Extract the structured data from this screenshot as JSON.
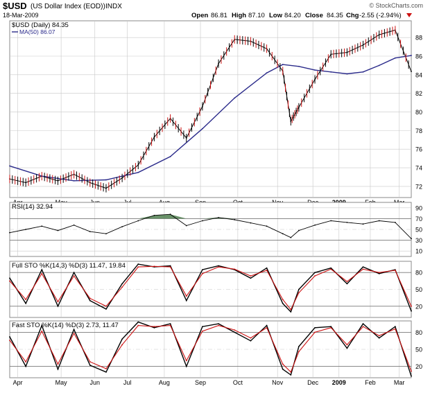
{
  "header": {
    "symbol": "$USD",
    "name": "(US Dollar Index (EOD))",
    "exchange": "INDX",
    "date": "18-Mar-2009",
    "brand": "© StockCharts.com",
    "open_label": "Open",
    "open": "86.81",
    "high_label": "High",
    "high": "87.10",
    "low_label": "Low",
    "low": "84.20",
    "close_label": "Close",
    "close": "84.35",
    "chg_label": "Chg",
    "chg": "-2.55 (-2.94%)"
  },
  "colors": {
    "price": "#000000",
    "ma": "#2a2a8a",
    "signal": "#cc1111",
    "rsi_fill": "#4f7f4f",
    "grid": "#c8c8c8",
    "down": "#cc1111"
  },
  "chart_data": [
    {
      "type": "line",
      "title": "$USD (Daily) 84.35",
      "legend": [
        "$USD (Daily) 84.35",
        "MA(50) 86.07"
      ],
      "x_ticks": [
        "Apr",
        "May",
        "Jun",
        "Jul",
        "Aug",
        "Sep",
        "Oct",
        "Nov",
        "Dec",
        "2009",
        "Feb",
        "Mar"
      ],
      "ylim": [
        70.8,
        89.8
      ],
      "y_ticks": [
        72,
        74,
        76,
        78,
        80,
        82,
        84,
        86,
        88
      ],
      "series": [
        {
          "name": "$USD (Daily)",
          "x": [
            0,
            10,
            20,
            30,
            40,
            50,
            60,
            70,
            80,
            90,
            100,
            110,
            120,
            130,
            140,
            150,
            160,
            170,
            175,
            180,
            190,
            200,
            210,
            220,
            230,
            240,
            250
          ],
          "values": [
            72.8,
            72.4,
            73.1,
            72.6,
            73.3,
            72.4,
            71.8,
            72.9,
            74.3,
            77.3,
            79.3,
            77.2,
            80.6,
            85.2,
            87.8,
            87.6,
            86.8,
            84.4,
            79.0,
            80.5,
            83.5,
            86.2,
            86.4,
            87.2,
            88.3,
            88.8,
            84.35
          ]
        },
        {
          "name": "MA(50) 86.07",
          "x": [
            0,
            20,
            40,
            60,
            80,
            100,
            120,
            140,
            160,
            170,
            180,
            190,
            200,
            210,
            220,
            230,
            240,
            250
          ],
          "values": [
            74.2,
            73.1,
            72.6,
            72.7,
            73.5,
            75.2,
            78.2,
            81.5,
            84.2,
            85.1,
            84.9,
            84.5,
            84.3,
            84.1,
            84.3,
            85.0,
            85.8,
            86.07
          ]
        }
      ]
    },
    {
      "type": "line",
      "title": "RSI(14) 32.94",
      "ylim": [
        0,
        100
      ],
      "y_ticks": [
        10,
        30,
        50,
        70,
        90
      ],
      "series": [
        {
          "name": "RSI(14)",
          "x": [
            0,
            10,
            20,
            30,
            40,
            50,
            60,
            70,
            80,
            90,
            100,
            110,
            120,
            130,
            140,
            150,
            160,
            170,
            175,
            180,
            190,
            200,
            210,
            220,
            230,
            240,
            250
          ],
          "values": [
            44,
            50,
            56,
            48,
            58,
            46,
            42,
            55,
            66,
            76,
            78,
            57,
            66,
            72,
            68,
            62,
            56,
            42,
            35,
            48,
            58,
            66,
            63,
            60,
            66,
            63,
            32.94
          ]
        }
      ]
    },
    {
      "type": "line",
      "title": "Full STO %K(14,3) %D(3) 11.47, 19.84",
      "ylim": [
        0,
        100
      ],
      "y_ticks": [
        20,
        50,
        80
      ],
      "series": [
        {
          "name": "%K(14,3)",
          "x": [
            0,
            10,
            20,
            30,
            40,
            50,
            60,
            70,
            80,
            90,
            100,
            110,
            120,
            130,
            140,
            150,
            160,
            170,
            175,
            180,
            190,
            200,
            210,
            220,
            230,
            240,
            250
          ],
          "values": [
            70,
            25,
            85,
            20,
            80,
            30,
            15,
            60,
            95,
            90,
            92,
            30,
            85,
            92,
            85,
            70,
            88,
            25,
            10,
            50,
            80,
            88,
            60,
            90,
            78,
            85,
            11.47
          ]
        },
        {
          "name": "%D(3)",
          "x": [
            0,
            10,
            20,
            30,
            40,
            50,
            60,
            70,
            80,
            90,
            100,
            110,
            120,
            130,
            140,
            150,
            160,
            170,
            175,
            180,
            190,
            200,
            210,
            220,
            230,
            240,
            250
          ],
          "values": [
            65,
            32,
            78,
            28,
            74,
            34,
            20,
            54,
            90,
            91,
            90,
            38,
            78,
            90,
            86,
            74,
            84,
            32,
            14,
            44,
            74,
            86,
            64,
            86,
            80,
            84,
            19.84
          ]
        }
      ]
    },
    {
      "type": "line",
      "title": "Fast STO %K(14) %D(3) 2.73, 11.47",
      "ylim": [
        0,
        100
      ],
      "y_ticks": [
        20,
        50,
        80
      ],
      "x_ticks": [
        "Apr",
        "May",
        "Jun",
        "Jul",
        "Aug",
        "Sep",
        "Oct",
        "Nov",
        "Dec",
        "2009",
        "Feb",
        "Mar"
      ],
      "series": [
        {
          "name": "%K(14)",
          "x": [
            0,
            10,
            20,
            30,
            40,
            50,
            60,
            70,
            80,
            90,
            100,
            110,
            120,
            130,
            140,
            150,
            160,
            170,
            175,
            180,
            190,
            200,
            210,
            220,
            230,
            240,
            250
          ],
          "values": [
            72,
            20,
            92,
            15,
            85,
            22,
            10,
            68,
            98,
            88,
            95,
            20,
            90,
            95,
            80,
            65,
            92,
            15,
            5,
            55,
            88,
            90,
            52,
            95,
            70,
            90,
            2.73
          ]
        },
        {
          "name": "%D(3)",
          "x": [
            0,
            10,
            20,
            30,
            40,
            50,
            60,
            70,
            80,
            90,
            100,
            110,
            120,
            130,
            140,
            150,
            160,
            170,
            175,
            180,
            190,
            200,
            210,
            220,
            230,
            240,
            250
          ],
          "values": [
            66,
            28,
            82,
            24,
            78,
            28,
            16,
            58,
            92,
            90,
            92,
            30,
            82,
            92,
            84,
            70,
            88,
            24,
            10,
            46,
            80,
            88,
            58,
            90,
            74,
            86,
            11.47
          ]
        }
      ]
    }
  ]
}
